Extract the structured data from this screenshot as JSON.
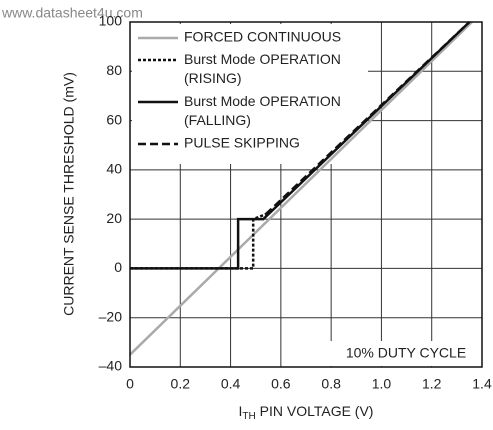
{
  "chart_data": {
    "type": "line",
    "watermark": "www.datasheet4u.com",
    "x_label": {
      "main": "I",
      "subscript": "TH",
      "rest": " PIN VOLTAGE (V)"
    },
    "y_label": "CURRENT SENSE THRESHOLD (mV)",
    "annotation": "10% DUTY CYCLE",
    "xlim": [
      0,
      1.4
    ],
    "ylim": [
      -40,
      100
    ],
    "xticks": [
      0,
      0.2,
      0.4,
      0.6,
      0.8,
      {
        "value": 1.0,
        "label": "1.0"
      },
      1.2,
      1.4
    ],
    "yticks": [
      {
        "value": -40,
        "label": "–40"
      },
      {
        "value": -20,
        "label": "–20"
      },
      0,
      20,
      40,
      60,
      80,
      100
    ],
    "grid": true,
    "series": [
      {
        "name": "FORCED CONTINUOUS",
        "color": "#aaaaaa",
        "dash": "solid",
        "x": [
          0,
          1.36
        ],
        "values": [
          -35,
          100
        ]
      },
      {
        "name": "Burst Mode OPERATION (RISING)",
        "color": "#111111",
        "dash": "dotted",
        "x": [
          0,
          0.49,
          0.49,
          0.54
        ],
        "values": [
          0,
          0,
          20,
          22
        ]
      },
      {
        "name": "Burst Mode OPERATION (FALLING)",
        "color": "#111111",
        "dash": "solid",
        "x": [
          0,
          0.43,
          0.43,
          0.53,
          1.35
        ],
        "values": [
          0,
          0,
          20,
          20,
          100
        ]
      },
      {
        "name": "PULSE SKIPPING",
        "color": "#111111",
        "dash": "dashed",
        "x": [
          0.54,
          1.35
        ],
        "values": [
          22,
          100
        ]
      }
    ]
  }
}
